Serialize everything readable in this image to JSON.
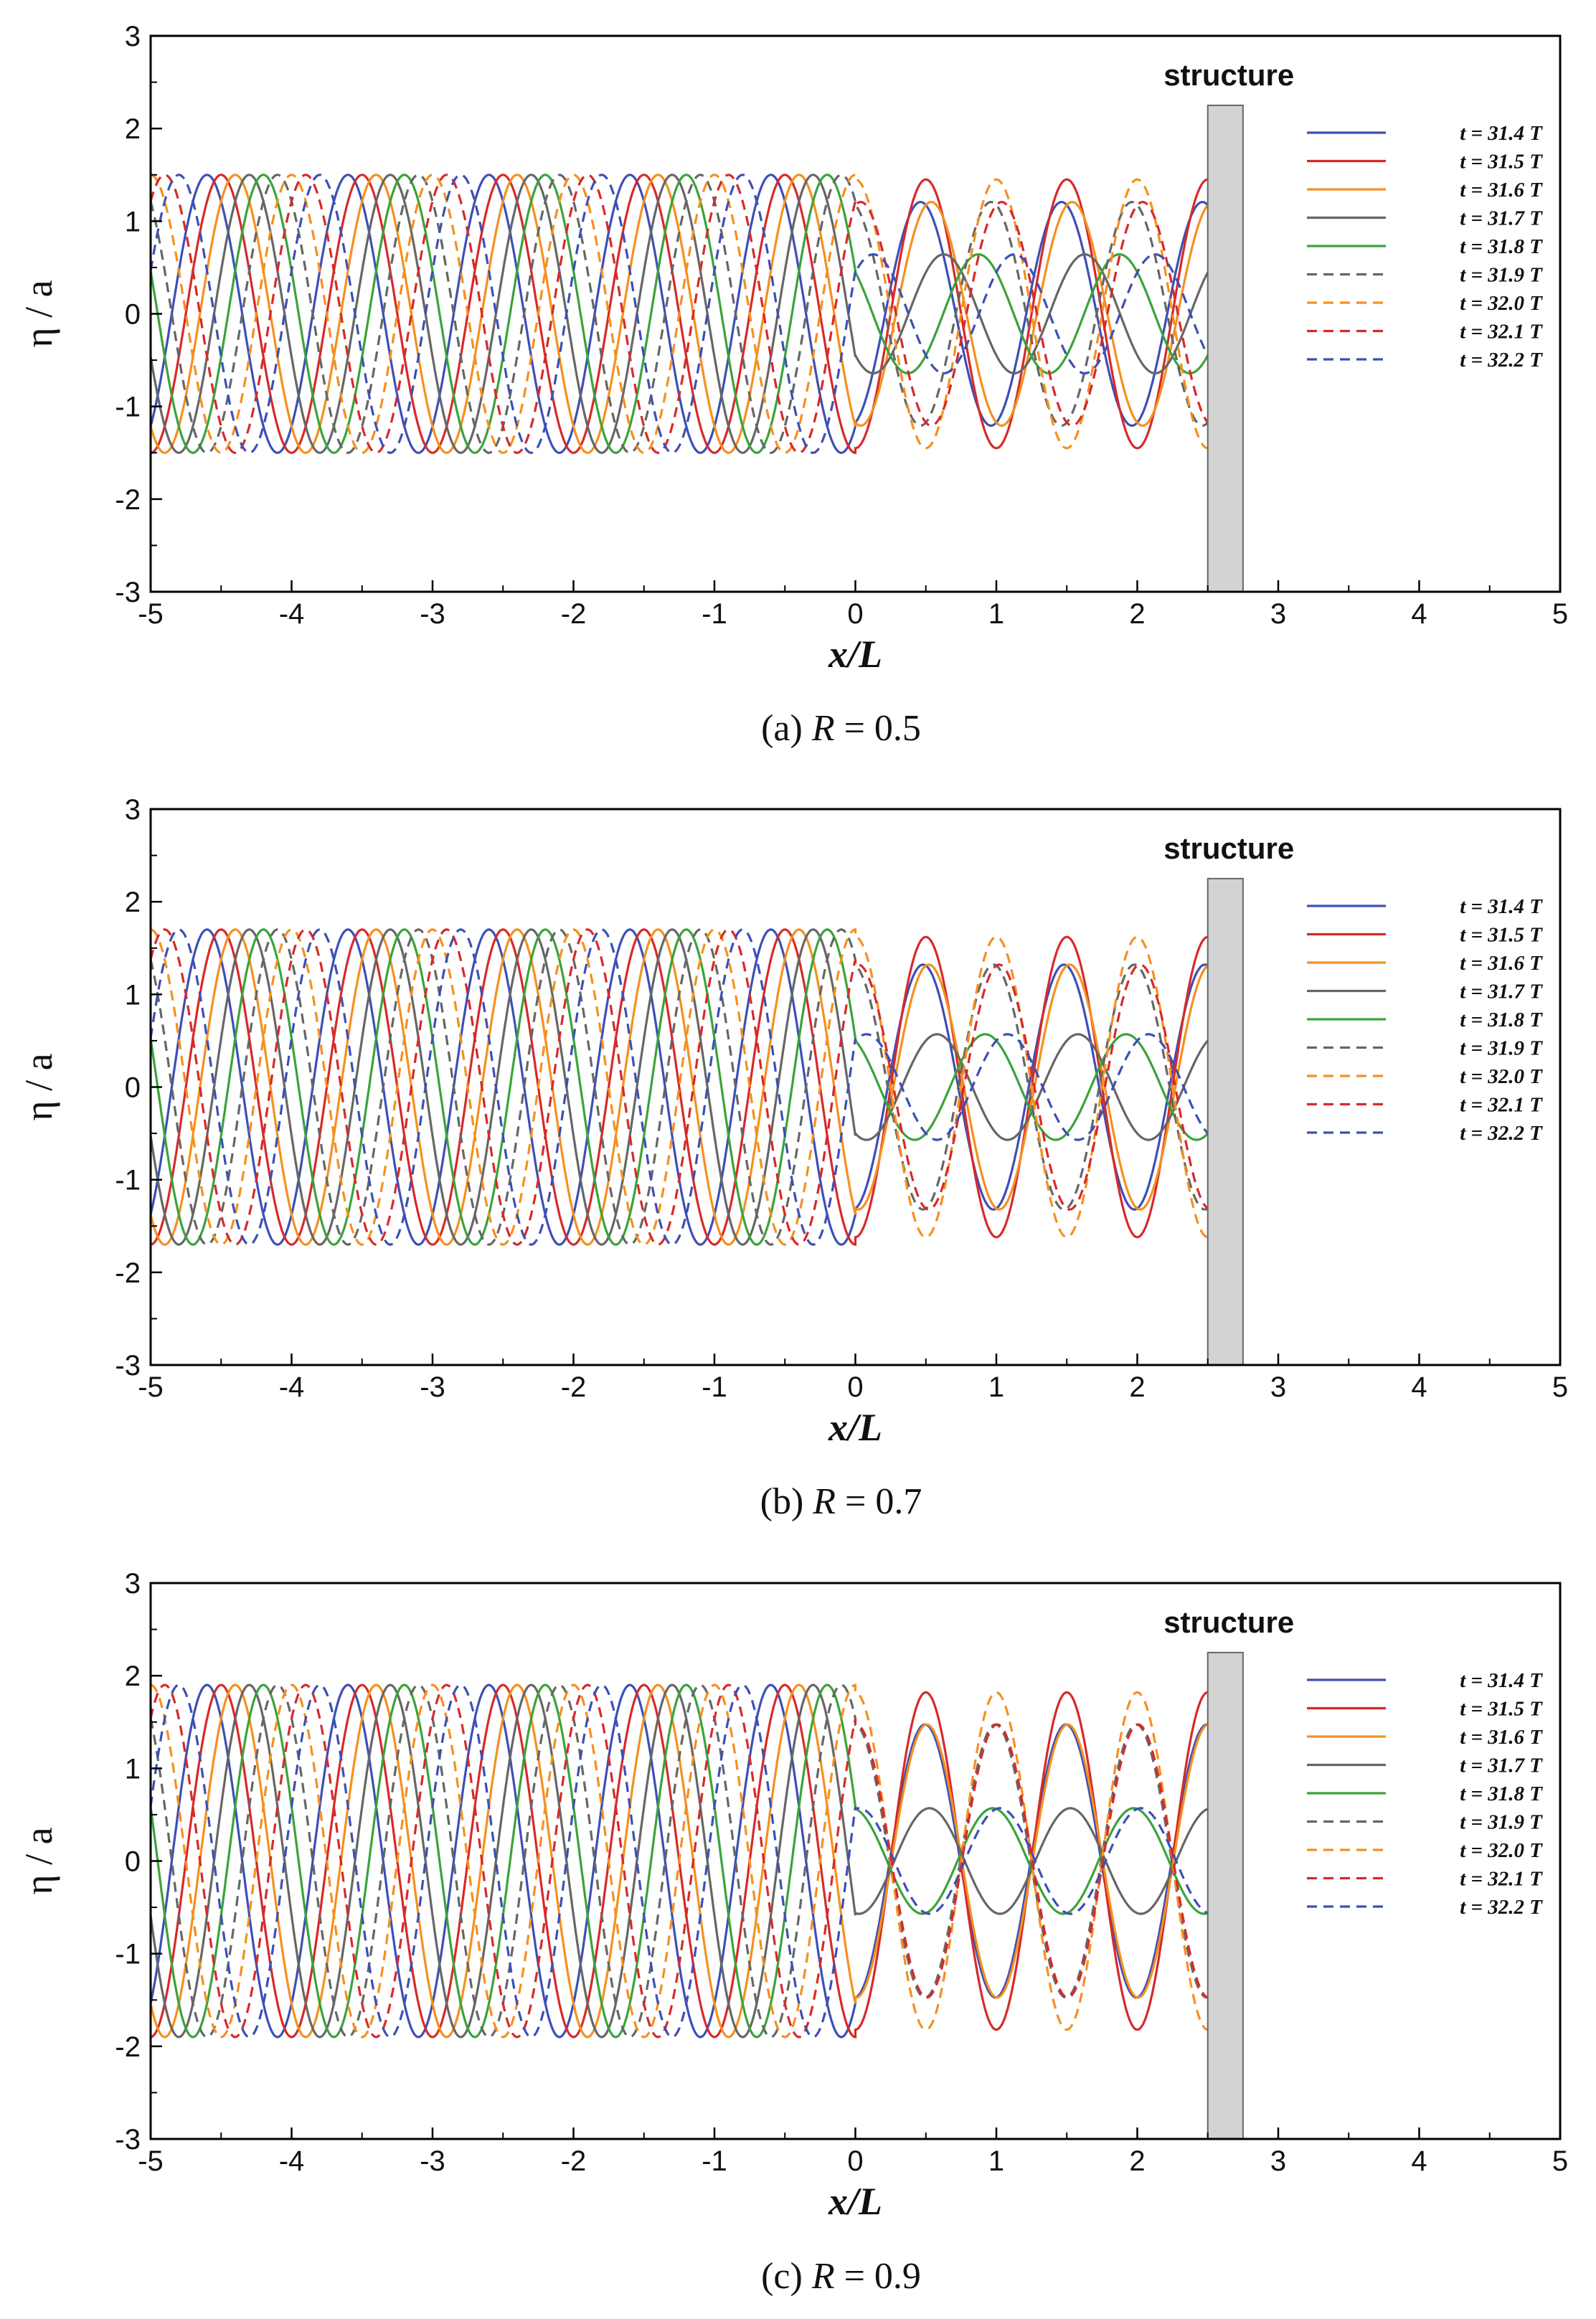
{
  "figure": {
    "panels": [
      {
        "caption_prefix": "(a)",
        "caption_var": "R",
        "caption_eq": "= 0.5"
      },
      {
        "caption_prefix": "(b)",
        "caption_var": "R",
        "caption_eq": "= 0.7"
      },
      {
        "caption_prefix": "(c)",
        "caption_var": "R",
        "caption_eq": "= 0.9"
      }
    ]
  },
  "chart_data": [
    {
      "type": "line",
      "title": "(a) R = 0.5",
      "xlabel": "x/L",
      "ylabel": "η / a",
      "xlim": [
        -5,
        5
      ],
      "ylim": [
        -3,
        3
      ],
      "xticks": [
        "-5",
        "-4",
        "-3",
        "-2",
        "-1",
        "0",
        "1",
        "2",
        "3",
        "4",
        "5"
      ],
      "yticks": [
        "3",
        "2",
        "1",
        "0",
        "-1",
        "-2",
        "-3"
      ],
      "reflection_coefficient": 0.5,
      "incident_envelope": 1.5,
      "standing_wave_max": 1.45,
      "structure": {
        "label": "structure",
        "x_start": 2.5,
        "x_end": 2.75,
        "height": 2.25
      },
      "legend_position": "top-right",
      "series": [
        {
          "name": "t = 31.4 T",
          "time": 31.4,
          "color": "#3d4fb5",
          "dash": false
        },
        {
          "name": "t = 31.5 T",
          "time": 31.5,
          "color": "#d62a2a",
          "dash": false
        },
        {
          "name": "t = 31.6 T",
          "time": 31.6,
          "color": "#f5901e",
          "dash": false
        },
        {
          "name": "t = 31.7 T",
          "time": 31.7,
          "color": "#666666",
          "dash": false
        },
        {
          "name": "t = 31.8 T",
          "time": 31.8,
          "color": "#3aa33a",
          "dash": false
        },
        {
          "name": "t = 31.9 T",
          "time": 31.9,
          "color": "#666666",
          "dash": true
        },
        {
          "name": "t = 32.0 T",
          "time": 32.0,
          "color": "#f5901e",
          "dash": true
        },
        {
          "name": "t = 32.1 T",
          "time": 32.1,
          "color": "#d62a2a",
          "dash": true
        },
        {
          "name": "t = 32.2 T",
          "time": 32.2,
          "color": "#3d4fb5",
          "dash": true
        }
      ]
    },
    {
      "type": "line",
      "title": "(b) R = 0.7",
      "xlabel": "x/L",
      "ylabel": "η / a",
      "xlim": [
        -5,
        5
      ],
      "ylim": [
        -3,
        3
      ],
      "xticks": [
        "-5",
        "-4",
        "-3",
        "-2",
        "-1",
        "0",
        "1",
        "2",
        "3",
        "4",
        "5"
      ],
      "yticks": [
        "3",
        "2",
        "1",
        "0",
        "-1",
        "-2",
        "-3"
      ],
      "reflection_coefficient": 0.7,
      "incident_envelope": 1.7,
      "standing_wave_max": 1.62,
      "structure": {
        "label": "structure",
        "x_start": 2.5,
        "x_end": 2.75,
        "height": 2.25
      },
      "legend_position": "top-right",
      "series": [
        {
          "name": "t = 31.4 T",
          "time": 31.4,
          "color": "#3d4fb5",
          "dash": false
        },
        {
          "name": "t = 31.5 T",
          "time": 31.5,
          "color": "#d62a2a",
          "dash": false
        },
        {
          "name": "t = 31.6 T",
          "time": 31.6,
          "color": "#f5901e",
          "dash": false
        },
        {
          "name": "t = 31.7 T",
          "time": 31.7,
          "color": "#666666",
          "dash": false
        },
        {
          "name": "t = 31.8 T",
          "time": 31.8,
          "color": "#3aa33a",
          "dash": false
        },
        {
          "name": "t = 31.9 T",
          "time": 31.9,
          "color": "#666666",
          "dash": true
        },
        {
          "name": "t = 32.0 T",
          "time": 32.0,
          "color": "#f5901e",
          "dash": true
        },
        {
          "name": "t = 32.1 T",
          "time": 32.1,
          "color": "#d62a2a",
          "dash": true
        },
        {
          "name": "t = 32.2 T",
          "time": 32.2,
          "color": "#3d4fb5",
          "dash": true
        }
      ]
    },
    {
      "type": "line",
      "title": "(c) R = 0.9",
      "xlabel": "x/L",
      "ylabel": "η / a",
      "xlim": [
        -5,
        5
      ],
      "ylim": [
        -3,
        3
      ],
      "xticks": [
        "-5",
        "-4",
        "-3",
        "-2",
        "-1",
        "0",
        "1",
        "2",
        "3",
        "4",
        "5"
      ],
      "yticks": [
        "3",
        "2",
        "1",
        "0",
        "-1",
        "-2",
        "-3"
      ],
      "reflection_coefficient": 0.9,
      "incident_envelope": 1.9,
      "standing_wave_max": 1.82,
      "structure": {
        "label": "structure",
        "x_start": 2.5,
        "x_end": 2.75,
        "height": 2.25
      },
      "legend_position": "top-right",
      "series": [
        {
          "name": "t = 31.4 T",
          "time": 31.4,
          "color": "#3d4fb5",
          "dash": false
        },
        {
          "name": "t = 31.5 T",
          "time": 31.5,
          "color": "#d62a2a",
          "dash": false
        },
        {
          "name": "t = 31.6 T",
          "time": 31.6,
          "color": "#f5901e",
          "dash": false
        },
        {
          "name": "t = 31.7 T",
          "time": 31.7,
          "color": "#666666",
          "dash": false
        },
        {
          "name": "t = 31.8 T",
          "time": 31.8,
          "color": "#3aa33a",
          "dash": false
        },
        {
          "name": "t = 31.9 T",
          "time": 31.9,
          "color": "#666666",
          "dash": true
        },
        {
          "name": "t = 32.0 T",
          "time": 32.0,
          "color": "#f5901e",
          "dash": true
        },
        {
          "name": "t = 32.1 T",
          "time": 32.1,
          "color": "#d62a2a",
          "dash": true
        },
        {
          "name": "t = 32.2 T",
          "time": 32.2,
          "color": "#3d4fb5",
          "dash": true
        }
      ]
    }
  ]
}
